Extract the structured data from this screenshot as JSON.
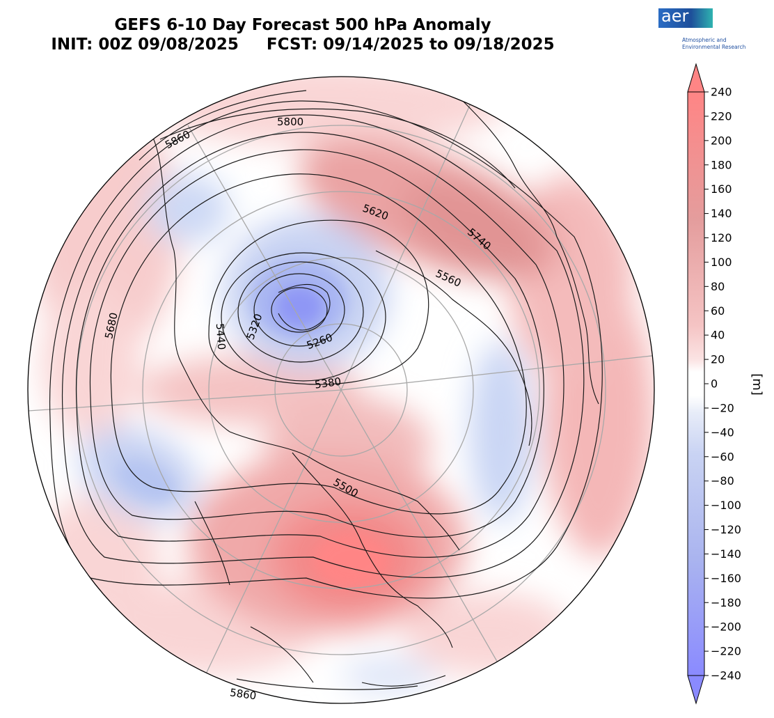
{
  "title": {
    "line1": "GEFS 6-10 Day Forecast 500 hPa Anomaly",
    "line2": "INIT: 00Z 09/08/2025     FCST: 09/14/2025 to 09/18/2025"
  },
  "logo": {
    "text": "aer",
    "sub1": "Atmospheric and",
    "sub2": "Environmental Research"
  },
  "colorbar": {
    "unit": "[m]",
    "ticks": [
      "240",
      "220",
      "200",
      "180",
      "160",
      "140",
      "120",
      "100",
      "80",
      "60",
      "40",
      "20",
      "0",
      "−20",
      "−40",
      "−60",
      "−80",
      "−100",
      "−120",
      "−140",
      "−160",
      "−180",
      "−200",
      "−220",
      "−240"
    ]
  },
  "contour_labels": [
    {
      "id": "c5860a",
      "text": "5860"
    },
    {
      "id": "c5800",
      "text": "5800"
    },
    {
      "id": "c5620",
      "text": "5620"
    },
    {
      "id": "c5740",
      "text": "5740"
    },
    {
      "id": "c5560",
      "text": "5560"
    },
    {
      "id": "c5680",
      "text": "5680"
    },
    {
      "id": "c5440",
      "text": "5440"
    },
    {
      "id": "c5320",
      "text": "5320"
    },
    {
      "id": "c5260",
      "text": "5260"
    },
    {
      "id": "c5380",
      "text": "5380"
    },
    {
      "id": "c5500",
      "text": "5500"
    },
    {
      "id": "c5860b",
      "text": "5860"
    }
  ],
  "colors": {
    "positive_max": "#ff8585",
    "negative_max": "#8a8aff",
    "zero": "#ffffff"
  }
}
